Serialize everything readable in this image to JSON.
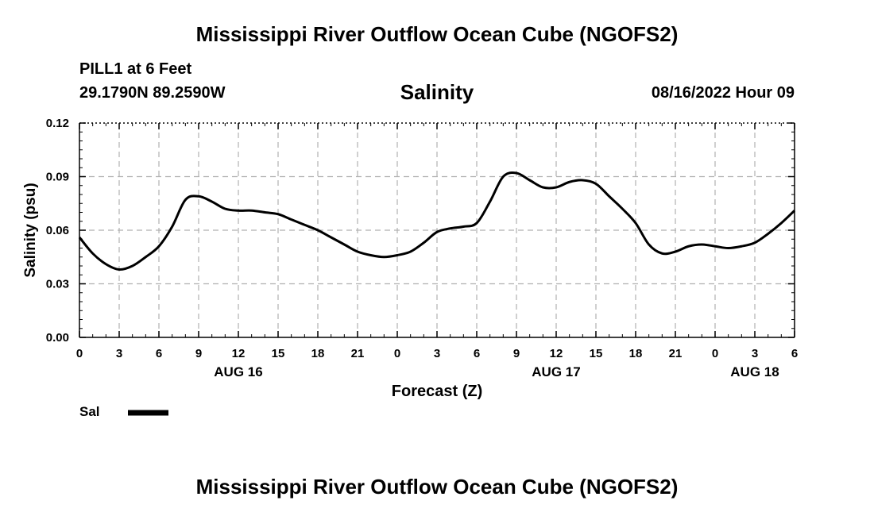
{
  "header": {
    "title": "Mississippi River Outflow Ocean Cube (NGOFS2)",
    "station": "PILL1 at 6 Feet",
    "coords": "29.1790N  89.2590W",
    "datetime": "08/16/2022 Hour 09"
  },
  "footer": {
    "title": "Mississippi River Outflow Ocean Cube (NGOFS2)"
  },
  "colors": {
    "line": "#000000",
    "grid": "#b0b0b0"
  },
  "chart_data": {
    "type": "line",
    "title": "Salinity",
    "xlabel": "Forecast (Z)",
    "ylabel": "Salinity (psu)",
    "ylim": [
      0,
      0.12
    ],
    "xlim": [
      0,
      54
    ],
    "x_ticks": [
      0,
      3,
      6,
      9,
      12,
      15,
      18,
      21,
      24,
      27,
      30,
      33,
      36,
      39,
      42,
      45,
      48,
      51,
      54
    ],
    "x_tick_labels": [
      "0",
      "3",
      "6",
      "9",
      "12",
      "15",
      "18",
      "21",
      "0",
      "3",
      "6",
      "9",
      "12",
      "15",
      "18",
      "21",
      "0",
      "3",
      "6"
    ],
    "y_ticks": [
      0,
      0.03,
      0.06,
      0.09,
      0.12
    ],
    "y_tick_labels": [
      "0.00",
      "0.03",
      "0.06",
      "0.09",
      "0.12"
    ],
    "day_labels": [
      {
        "x": 12,
        "label": "AUG 16"
      },
      {
        "x": 36,
        "label": "AUG 17"
      },
      {
        "x": 51,
        "label": "AUG 18"
      }
    ],
    "grid": true,
    "legend": {
      "placement": "bottom-left",
      "entries": [
        {
          "label": "Sal"
        }
      ]
    },
    "series": [
      {
        "name": "Sal",
        "x": [
          0,
          1,
          2,
          3,
          4,
          5,
          6,
          7,
          8,
          9,
          10,
          11,
          12,
          13,
          14,
          15,
          16,
          17,
          18,
          19,
          20,
          21,
          22,
          23,
          24,
          25,
          26,
          27,
          28,
          29,
          30,
          31,
          32,
          33,
          34,
          35,
          36,
          37,
          38,
          39,
          40,
          41,
          42,
          43,
          44,
          45,
          46,
          47,
          48,
          49,
          50,
          51,
          52,
          53,
          54
        ],
        "values": [
          0.056,
          0.047,
          0.041,
          0.038,
          0.04,
          0.045,
          0.051,
          0.062,
          0.077,
          0.079,
          0.076,
          0.072,
          0.071,
          0.071,
          0.07,
          0.069,
          0.066,
          0.063,
          0.06,
          0.056,
          0.052,
          0.048,
          0.046,
          0.045,
          0.046,
          0.048,
          0.053,
          0.059,
          0.061,
          0.062,
          0.064,
          0.076,
          0.09,
          0.092,
          0.088,
          0.084,
          0.084,
          0.087,
          0.088,
          0.086,
          0.079,
          0.072,
          0.064,
          0.052,
          0.047,
          0.048,
          0.051,
          0.052,
          0.051,
          0.05,
          0.051,
          0.053,
          0.058,
          0.064,
          0.071
        ]
      }
    ]
  }
}
